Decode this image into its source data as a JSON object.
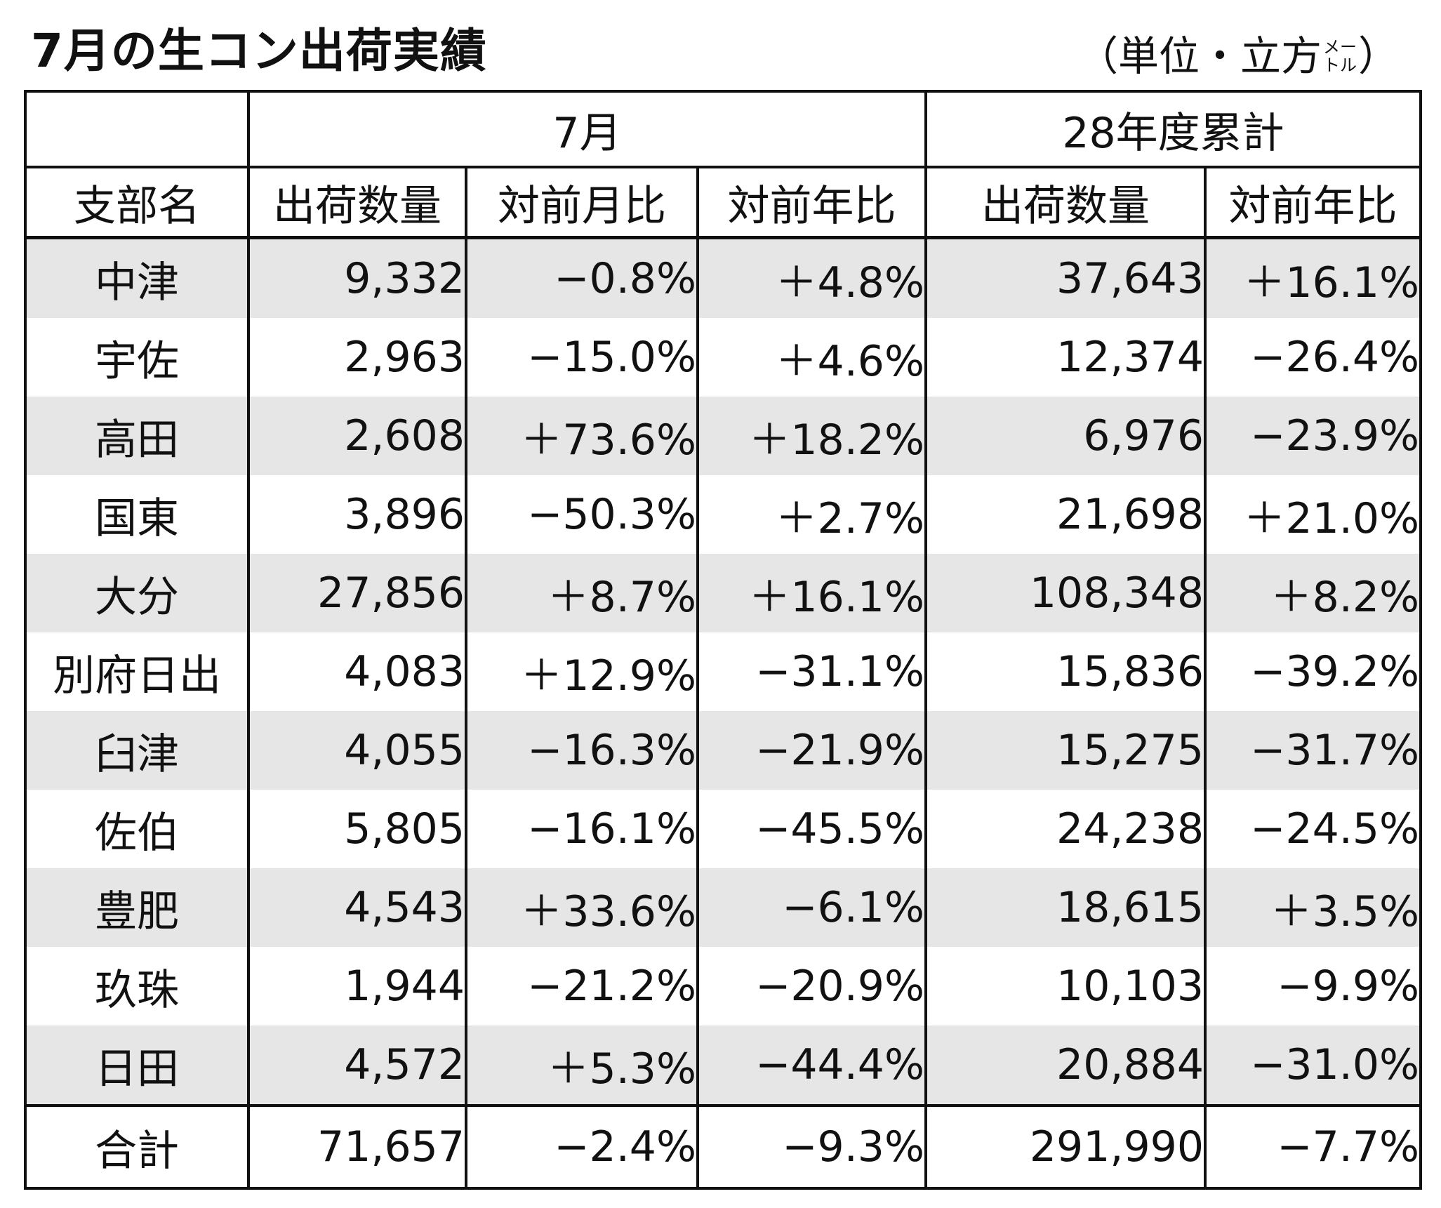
{
  "title": "7月の生コン出荷実績",
  "unit": {
    "open": "（単位・立方",
    "small_top": "メー",
    "small_bottom": "トル",
    "close": "）"
  },
  "table": {
    "group_headers": [
      "",
      "7月",
      "28年度累計"
    ],
    "column_headers": [
      "支部名",
      "出荷数量",
      "対前月比",
      "対前年比",
      "出荷数量",
      "対前年比"
    ],
    "rows": [
      {
        "name": "中津",
        "july_qty": "9,332",
        "mom": "−0.8%",
        "yoy": "＋4.8%",
        "cum_qty": "37,643",
        "cum_yoy": "＋16.1%"
      },
      {
        "name": "宇佐",
        "july_qty": "2,963",
        "mom": "−15.0%",
        "yoy": "＋4.6%",
        "cum_qty": "12,374",
        "cum_yoy": "−26.4%"
      },
      {
        "name": "高田",
        "july_qty": "2,608",
        "mom": "＋73.6%",
        "yoy": "＋18.2%",
        "cum_qty": "6,976",
        "cum_yoy": "−23.9%"
      },
      {
        "name": "国東",
        "july_qty": "3,896",
        "mom": "−50.3%",
        "yoy": "＋2.7%",
        "cum_qty": "21,698",
        "cum_yoy": "＋21.0%"
      },
      {
        "name": "大分",
        "july_qty": "27,856",
        "mom": "＋8.7%",
        "yoy": "＋16.1%",
        "cum_qty": "108,348",
        "cum_yoy": "＋8.2%"
      },
      {
        "name": "別府日出",
        "july_qty": "4,083",
        "mom": "＋12.9%",
        "yoy": "−31.1%",
        "cum_qty": "15,836",
        "cum_yoy": "−39.2%"
      },
      {
        "name": "臼津",
        "july_qty": "4,055",
        "mom": "−16.3%",
        "yoy": "−21.9%",
        "cum_qty": "15,275",
        "cum_yoy": "−31.7%"
      },
      {
        "name": "佐伯",
        "july_qty": "5,805",
        "mom": "−16.1%",
        "yoy": "−45.5%",
        "cum_qty": "24,238",
        "cum_yoy": "−24.5%"
      },
      {
        "name": "豊肥",
        "july_qty": "4,543",
        "mom": "＋33.6%",
        "yoy": "−6.1%",
        "cum_qty": "18,615",
        "cum_yoy": "＋3.5%"
      },
      {
        "name": "玖珠",
        "july_qty": "1,944",
        "mom": "−21.2%",
        "yoy": "−20.9%",
        "cum_qty": "10,103",
        "cum_yoy": "−9.9%"
      },
      {
        "name": "日田",
        "july_qty": "4,572",
        "mom": "＋5.3%",
        "yoy": "−44.4%",
        "cum_qty": "20,884",
        "cum_yoy": "−31.0%"
      }
    ],
    "total": {
      "name": "合計",
      "july_qty": "71,657",
      "mom": "−2.4%",
      "yoy": "−9.3%",
      "cum_qty": "291,990",
      "cum_yoy": "−7.7%"
    }
  },
  "colors": {
    "shaded_row": "#e6e6e6",
    "rule": "#111111"
  }
}
